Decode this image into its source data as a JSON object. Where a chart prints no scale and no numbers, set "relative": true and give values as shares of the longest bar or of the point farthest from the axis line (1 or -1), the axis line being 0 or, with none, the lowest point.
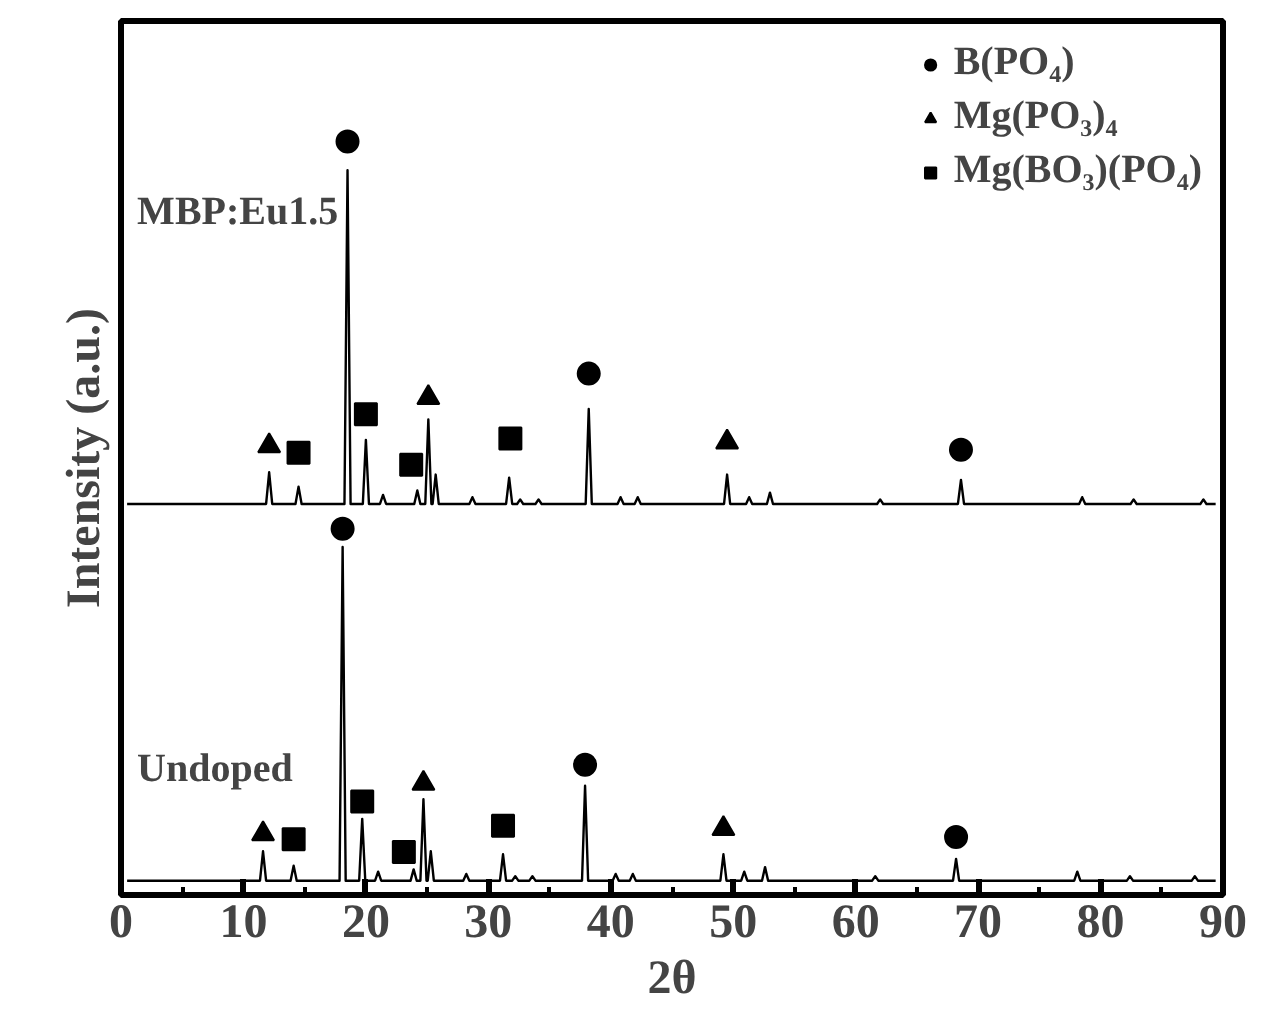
{
  "chart_data": {
    "type": "line",
    "relative": true,
    "xlabel": "2θ",
    "ylabel": "Intensity (a.u.)",
    "xlim": [
      0,
      90
    ],
    "xticks": [
      0,
      10,
      20,
      30,
      40,
      50,
      60,
      70,
      80,
      90
    ],
    "grid": false,
    "legend": "top right",
    "series": [
      {
        "name": "MBP:Eu1.5",
        "color": "#000000",
        "x": [
          0.5,
          11.85,
          12.1,
          12.35,
          14.25,
          14.5,
          14.75,
          18.25,
          18.5,
          18.75,
          19.75,
          20.0,
          20.25,
          21.15,
          21.4,
          21.65,
          23.95,
          24.2,
          24.45,
          24.85,
          25.1,
          25.35,
          25.45,
          25.7,
          25.95,
          28.45,
          28.7,
          28.95,
          31.45,
          31.7,
          31.95,
          32.35,
          32.6,
          32.85,
          33.85,
          34.1,
          34.35,
          37.95,
          38.2,
          38.45,
          40.55,
          40.8,
          41.05,
          41.95,
          42.2,
          42.45,
          49.25,
          49.5,
          49.75,
          51.05,
          51.3,
          51.55,
          52.75,
          53.0,
          53.25,
          61.75,
          62.0,
          62.25,
          68.35,
          68.6,
          68.85,
          78.25,
          78.5,
          78.75,
          82.45,
          82.7,
          82.95,
          88.15,
          88.4,
          88.65,
          89.4
        ],
        "values": [
          0.519,
          0.519,
          0.561,
          0.519,
          0.519,
          0.542,
          0.519,
          0.519,
          0.962,
          0.519,
          0.519,
          0.604,
          0.519,
          0.519,
          0.531,
          0.519,
          0.519,
          0.537,
          0.519,
          0.519,
          0.631,
          0.519,
          0.519,
          0.558,
          0.519,
          0.519,
          0.528,
          0.519,
          0.519,
          0.554,
          0.519,
          0.519,
          0.525,
          0.519,
          0.519,
          0.525,
          0.519,
          0.519,
          0.645,
          0.519,
          0.519,
          0.528,
          0.519,
          0.519,
          0.528,
          0.519,
          0.519,
          0.558,
          0.519,
          0.519,
          0.528,
          0.519,
          0.519,
          0.534,
          0.519,
          0.519,
          0.525,
          0.519,
          0.519,
          0.551,
          0.519,
          0.519,
          0.528,
          0.519,
          0.519,
          0.525,
          0.519,
          0.519,
          0.525,
          0.519,
          0.519
        ]
      },
      {
        "name": "Undoped",
        "color": "#000000",
        "x": [
          0.5,
          11.35,
          11.6,
          11.85,
          13.85,
          14.1,
          14.35,
          17.85,
          18.1,
          18.35,
          19.45,
          19.7,
          19.95,
          20.75,
          21.0,
          21.25,
          23.65,
          23.9,
          24.15,
          24.45,
          24.7,
          24.95,
          25.05,
          25.3,
          25.55,
          27.95,
          28.2,
          28.45,
          30.95,
          31.2,
          31.45,
          31.95,
          32.2,
          32.45,
          33.35,
          33.6,
          33.85,
          37.65,
          37.9,
          38.15,
          40.15,
          40.4,
          40.65,
          41.55,
          41.8,
          42.05,
          48.95,
          49.2,
          49.45,
          50.65,
          50.9,
          51.15,
          52.35,
          52.6,
          52.85,
          61.35,
          61.6,
          61.85,
          67.95,
          68.2,
          68.45,
          77.85,
          78.1,
          78.35,
          82.15,
          82.4,
          82.65,
          87.45,
          87.7,
          87.95,
          89.4
        ],
        "values": [
          0.019,
          0.019,
          0.058,
          0.019,
          0.019,
          0.039,
          0.019,
          0.019,
          0.462,
          0.019,
          0.019,
          0.101,
          0.019,
          0.019,
          0.031,
          0.019,
          0.019,
          0.034,
          0.019,
          0.019,
          0.127,
          0.019,
          0.019,
          0.058,
          0.019,
          0.019,
          0.028,
          0.019,
          0.019,
          0.054,
          0.019,
          0.019,
          0.025,
          0.019,
          0.019,
          0.025,
          0.019,
          0.019,
          0.145,
          0.019,
          0.019,
          0.028,
          0.019,
          0.019,
          0.028,
          0.019,
          0.019,
          0.054,
          0.019,
          0.019,
          0.031,
          0.019,
          0.019,
          0.037,
          0.019,
          0.019,
          0.025,
          0.019,
          0.019,
          0.048,
          0.019,
          0.019,
          0.031,
          0.019,
          0.019,
          0.025,
          0.019,
          0.019,
          0.025,
          0.019,
          0.019
        ]
      },
      {
        "name": "B(PO₄)",
        "type": "scatter",
        "marker": "circle",
        "color": "#000000",
        "x": [
          18.5,
          38.2,
          68.6,
          18.1,
          37.9,
          68.2
        ],
        "values": [
          1.0,
          0.692,
          0.591,
          0.486,
          0.173,
          0.077
        ]
      },
      {
        "name": "Mg(PO₃)₄",
        "type": "scatter",
        "marker": "triangle",
        "color": "#000000",
        "x": [
          12.1,
          25.1,
          49.5,
          11.6,
          24.7,
          49.2
        ],
        "values": [
          0.596,
          0.66,
          0.601,
          0.081,
          0.148,
          0.088
        ]
      },
      {
        "name": "Mg(BO₃)(PO₄)",
        "type": "scatter",
        "marker": "square",
        "color": "#000000",
        "x": [
          14.5,
          20.0,
          23.7,
          31.8,
          14.1,
          19.7,
          23.1,
          31.2
        ],
        "values": [
          0.587,
          0.638,
          0.571,
          0.606,
          0.074,
          0.124,
          0.057,
          0.092
        ]
      }
    ]
  }
}
